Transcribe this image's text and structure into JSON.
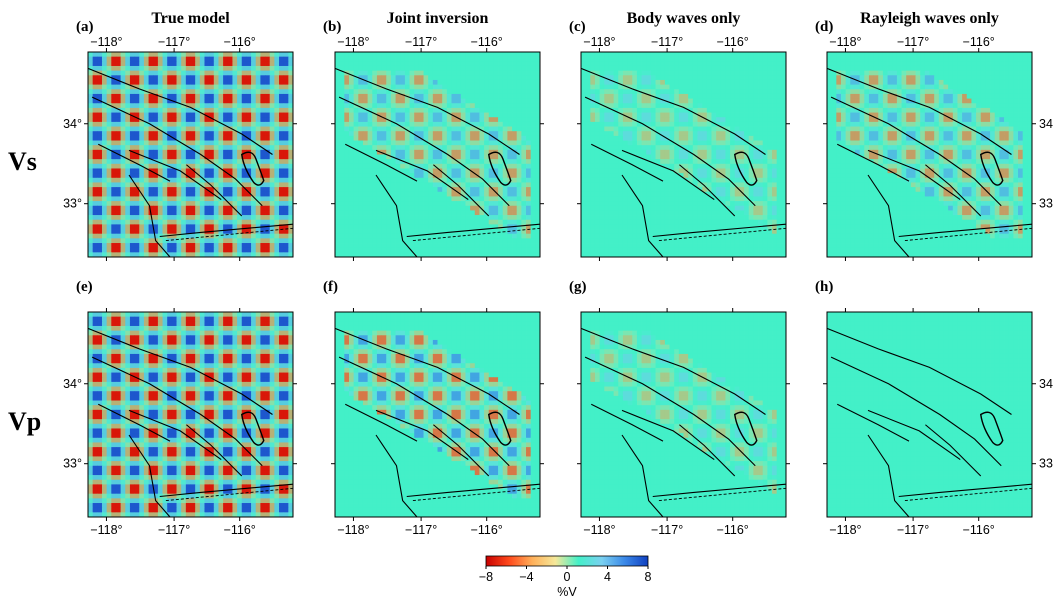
{
  "rows": [
    {
      "label": "Vs"
    },
    {
      "label": "Vp"
    }
  ],
  "panels": [
    {
      "id": "a",
      "tag": "(a)",
      "title": "True model",
      "pattern": "true"
    },
    {
      "id": "b",
      "tag": "(b)",
      "title": "Joint inversion",
      "pattern": "joint"
    },
    {
      "id": "c",
      "tag": "(c)",
      "title": "Body waves only",
      "pattern": "body"
    },
    {
      "id": "d",
      "tag": "(d)",
      "title": "Rayleigh waves only",
      "pattern": "rayleigh"
    },
    {
      "id": "e",
      "tag": "(e)",
      "title": "",
      "pattern": "true"
    },
    {
      "id": "f",
      "tag": "(f)",
      "title": "",
      "pattern": "joint_p"
    },
    {
      "id": "g",
      "tag": "(g)",
      "title": "",
      "pattern": "body_p"
    },
    {
      "id": "h",
      "tag": "(h)",
      "title": "",
      "pattern": "rayleigh_p"
    }
  ],
  "axes": {
    "lon_ticks": [
      "−118°",
      "−117°",
      "−116°"
    ],
    "lat_ticks": [
      "34°",
      "33°"
    ],
    "lon_range": [
      -118.3,
      -115.3
    ],
    "lat_range": [
      32.4,
      34.6
    ]
  },
  "colorbar": {
    "ticks": [
      "−8",
      "−4",
      "0",
      "4",
      "8"
    ],
    "unit": "%V",
    "range": [
      -8,
      8
    ],
    "colors": [
      "#c80000",
      "#ff4a1c",
      "#ffb05a",
      "#f5e89a",
      "#43f0c8",
      "#7ad0f0",
      "#3a88e8",
      "#1040c0"
    ]
  }
}
